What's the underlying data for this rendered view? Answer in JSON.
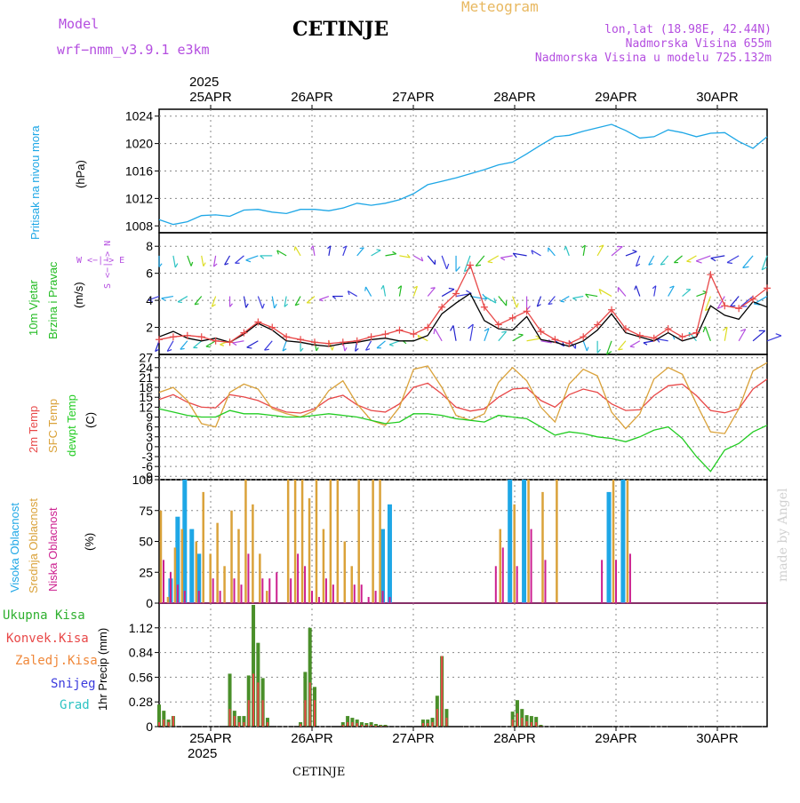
{
  "header": {
    "model_label": "Model",
    "model_name": "wrf−nmm_v3.9.1  e3km",
    "title": "CETINJE",
    "product": "Meteogram",
    "coords": "lon,lat (18.98E, 42.44N)",
    "elevation": "Nadmorska Visina 655m",
    "model_elevation": "Nadmorska Visina u modelu 725.132m",
    "footer_station": "CETINJE",
    "watermark": "made by Angel"
  },
  "colors": {
    "pressure": "#1ea7e6",
    "wind_labels": "#22bb22",
    "temp2m": "#e84848",
    "sfc": "#daa23a",
    "dew": "#22cc22",
    "cloud_high": "#1ea7e6",
    "cloud_mid": "#daa23a",
    "cloud_low": "#cc1f8f",
    "rain_total": "#2fb02f",
    "rain_conv": "#e84848",
    "rain_strat": "#f0883a",
    "snow": "#3b3bdd",
    "graupel": "#2dc3c3",
    "model": "#b44ee0",
    "product": "#e8b860"
  },
  "time_axis": {
    "year": "2025",
    "dates": [
      "25APR",
      "26APR",
      "27APR",
      "28APR",
      "29APR",
      "30APR"
    ],
    "start_hour": 0
  },
  "panels": {
    "pressure": {
      "label": "Pritisak na nivou mora",
      "unit": "(hPa)"
    },
    "wind": {
      "label1": "10m Vjetar",
      "label2": "Brzina i Pravac",
      "unit": "(m/s)",
      "compass_ns": "S <−|−> N",
      "compass_ew": "W <−|−> E"
    },
    "temp": {
      "label1": "2m Temp",
      "label2": "SFC Temp",
      "label3": "dewpt Temp",
      "unit": "(C)"
    },
    "cloud": {
      "label1": "Visoka Oblacnost",
      "label2": "Srednja Oblacnost",
      "label3": "Niska Oblacnost",
      "unit": "(%)"
    },
    "precip": {
      "legend": [
        "Ukupna Kisa",
        "Konvek.Kisa",
        "Zaledj.Kisa",
        "Snijeg",
        "Grad"
      ],
      "unit": "1hr Precip (mm)"
    }
  },
  "chart_data": [
    {
      "id": "pressure",
      "type": "line",
      "ylabel": "(hPa)",
      "ylim": [
        1007,
        1025
      ],
      "yticks": [
        1008,
        1012,
        1016,
        1020,
        1024
      ],
      "x_hours": [
        0,
        6,
        12,
        18,
        24,
        30,
        36,
        42,
        48,
        54,
        60,
        66,
        72,
        78,
        84,
        90,
        96,
        102,
        108,
        114,
        120,
        126,
        132,
        138,
        144,
        150,
        156,
        162,
        168,
        174,
        180,
        186,
        192,
        198,
        204,
        210,
        216,
        222,
        228,
        234,
        240,
        246,
        252,
        258
      ],
      "series": [
        {
          "name": "Pritisak na nivou mora",
          "values": [
            1008.9,
            1008.2,
            1008.6,
            1009.5,
            1009.6,
            1009.4,
            1010.3,
            1010.4,
            1010.0,
            1009.8,
            1010.4,
            1010.4,
            1010.2,
            1010.6,
            1011.3,
            1011.0,
            1011.3,
            1011.8,
            1012.7,
            1014.0,
            1014.5,
            1015.0,
            1015.6,
            1016.2,
            1016.9,
            1017.3,
            1018.5,
            1019.8,
            1021.0,
            1021.2,
            1021.8,
            1022.3,
            1022.8,
            1021.9,
            1020.8,
            1021.0,
            1022.0,
            1021.6,
            1021.0,
            1021.5,
            1021.6,
            1020.3,
            1019.3,
            1021.0
          ]
        }
      ]
    },
    {
      "id": "wind",
      "type": "line",
      "ylabel": "(m/s)",
      "ylim": [
        0,
        9
      ],
      "yticks": [
        2,
        4,
        6,
        8
      ],
      "x_hours": [
        0,
        6,
        12,
        18,
        24,
        30,
        36,
        42,
        48,
        54,
        60,
        66,
        72,
        78,
        84,
        90,
        96,
        102,
        108,
        114,
        120,
        126,
        132,
        138,
        144,
        150,
        156,
        162,
        168,
        174,
        180,
        186,
        192,
        198,
        204,
        210,
        216,
        222,
        228,
        234,
        240,
        246,
        252,
        258
      ],
      "series": [
        {
          "name": "gust",
          "values": [
            1.1,
            1.3,
            1.4,
            1.3,
            1.0,
            0.9,
            1.6,
            2.4,
            2.0,
            1.3,
            1.1,
            0.9,
            0.8,
            0.9,
            1.0,
            1.3,
            1.5,
            1.8,
            1.5,
            2.0,
            3.5,
            4.5,
            6.6,
            3.5,
            2.2,
            2.7,
            3.2,
            1.7,
            1.1,
            0.8,
            1.3,
            2.2,
            3.3,
            1.9,
            1.4,
            1.2,
            1.9,
            1.3,
            1.6,
            5.9,
            3.6,
            3.4,
            4.1,
            4.9
          ]
        },
        {
          "name": "speed",
          "values": [
            1.3,
            1.7,
            1.2,
            1.0,
            1.2,
            0.9,
            1.5,
            2.3,
            1.8,
            1.0,
            0.9,
            0.7,
            0.6,
            0.8,
            0.9,
            1.1,
            1.2,
            1.0,
            1.0,
            1.4,
            3.0,
            3.8,
            4.5,
            2.5,
            1.9,
            1.8,
            2.8,
            1.1,
            0.9,
            0.6,
            1.0,
            1.8,
            3.0,
            1.6,
            1.3,
            1.0,
            1.6,
            1.0,
            1.3,
            3.6,
            2.9,
            2.6,
            3.9,
            3.5
          ]
        }
      ],
      "arrow_rows": [
        1,
        4.3,
        7.3
      ],
      "arrow_dirs_deg": [
        200,
        210,
        220,
        230,
        240,
        250,
        260,
        240,
        220,
        200,
        180,
        170,
        160,
        170,
        190,
        210,
        230,
        250,
        270,
        300,
        330,
        350,
        10,
        20,
        40,
        60,
        80,
        100,
        120,
        140,
        160,
        180,
        200,
        220,
        240,
        260,
        280,
        300,
        320,
        340,
        10,
        30,
        50,
        70
      ]
    },
    {
      "id": "temperature",
      "type": "line",
      "ylabel": "(C)",
      "ylim": [
        -10,
        28
      ],
      "yticks": [
        -9,
        -6,
        -3,
        0,
        3,
        6,
        9,
        12,
        15,
        18,
        21,
        24,
        27
      ],
      "x_hours": [
        0,
        6,
        12,
        18,
        24,
        30,
        36,
        42,
        48,
        54,
        60,
        66,
        72,
        78,
        84,
        90,
        96,
        102,
        108,
        114,
        120,
        126,
        132,
        138,
        144,
        150,
        156,
        162,
        168,
        174,
        180,
        186,
        192,
        198,
        204,
        210,
        216,
        222,
        228,
        234,
        240,
        246,
        252,
        258
      ],
      "series": [
        {
          "name": "2m Temp",
          "values": [
            14.3,
            15.8,
            13.5,
            12.0,
            11.8,
            15.8,
            15.1,
            14.0,
            12.0,
            10.5,
            10.2,
            11.5,
            14.5,
            15.6,
            12.7,
            11.0,
            10.5,
            13.0,
            18.0,
            19.3,
            16.0,
            12.0,
            10.8,
            11.5,
            15.0,
            17.5,
            17.8,
            14.0,
            12.0,
            15.8,
            17.5,
            16.5,
            13.0,
            11.0,
            11.2,
            15.5,
            18.5,
            19.0,
            15.5,
            11.0,
            10.3,
            11.5,
            17.5,
            20.5
          ]
        },
        {
          "name": "SFC Temp",
          "values": [
            16.5,
            18.0,
            14.0,
            7.0,
            6.0,
            16.5,
            19.0,
            17.5,
            11.5,
            10.0,
            9.0,
            11.0,
            17.0,
            20.0,
            13.0,
            8.0,
            6.5,
            12.0,
            23.5,
            24.5,
            18.0,
            9.5,
            8.0,
            10.0,
            19.5,
            24.0,
            20.0,
            12.0,
            7.5,
            19.0,
            23.5,
            21.5,
            10.5,
            5.5,
            10.0,
            20.5,
            24.0,
            22.0,
            13.0,
            4.5,
            4.0,
            11.5,
            23.0,
            25.5
          ]
        },
        {
          "name": "dewpt Temp",
          "values": [
            11.5,
            10.5,
            9.5,
            9.0,
            9.0,
            11.0,
            10.0,
            10.0,
            9.5,
            9.0,
            9.0,
            9.5,
            10.0,
            9.5,
            9.0,
            8.0,
            7.0,
            7.5,
            10.0,
            10.0,
            9.5,
            8.5,
            8.0,
            7.5,
            9.5,
            9.0,
            8.5,
            6.0,
            3.5,
            4.5,
            4.0,
            3.0,
            2.5,
            1.5,
            3.0,
            5.0,
            6.0,
            2.5,
            -3.0,
            -7.5,
            -1.0,
            1.0,
            4.5,
            6.5
          ]
        }
      ]
    },
    {
      "id": "cloud",
      "type": "bar",
      "ylabel": "(%)",
      "ylim": [
        0,
        100
      ],
      "yticks": [
        0,
        25,
        50,
        75,
        100
      ],
      "x_hours": [
        0,
        3,
        6,
        9,
        12,
        15,
        18,
        21,
        24,
        27,
        30,
        33,
        36,
        39,
        42,
        45,
        48,
        51,
        54,
        57,
        60,
        63,
        66,
        69,
        72,
        75,
        78,
        81,
        84,
        87,
        90,
        93,
        96,
        99,
        102,
        105,
        108,
        111,
        114,
        117,
        120,
        123,
        126,
        129,
        132,
        135,
        138,
        141,
        144,
        150,
        156,
        162,
        168,
        174,
        180,
        186,
        192,
        198,
        204,
        210,
        216,
        222,
        228,
        234,
        240,
        246,
        252,
        258
      ],
      "series": [
        {
          "name": "Visoka Oblacnost",
          "values": [
            0,
            0,
            20,
            70,
            100,
            60,
            40,
            0,
            0,
            0,
            0,
            0,
            0,
            0,
            0,
            0,
            0,
            0,
            0,
            0,
            0,
            0,
            0,
            0,
            0,
            0,
            0,
            0,
            0,
            0,
            0,
            0,
            60,
            80,
            0,
            0,
            0,
            0,
            0,
            0,
            0,
            0,
            0,
            0,
            0,
            0,
            0,
            0,
            0,
            100,
            100,
            0,
            0,
            0,
            0,
            0,
            90,
            100,
            0,
            0,
            0,
            0,
            0,
            0,
            0,
            0,
            0,
            0
          ]
        },
        {
          "name": "Srednja Oblacnost",
          "values": [
            75,
            5,
            45,
            60,
            0,
            50,
            90,
            40,
            65,
            30,
            75,
            60,
            100,
            80,
            40,
            10,
            0,
            0,
            100,
            100,
            100,
            85,
            100,
            60,
            100,
            100,
            50,
            30,
            100,
            0,
            100,
            100,
            0,
            0,
            0,
            0,
            0,
            0,
            0,
            0,
            0,
            0,
            0,
            0,
            0,
            0,
            0,
            0,
            60,
            80,
            100,
            90,
            100,
            0,
            0,
            0,
            100,
            100,
            0,
            0,
            0,
            0,
            0,
            0,
            0,
            0,
            0,
            0
          ]
        },
        {
          "name": "Niska Oblacnost",
          "values": [
            35,
            25,
            15,
            10,
            0,
            10,
            0,
            20,
            10,
            0,
            20,
            15,
            40,
            0,
            20,
            20,
            25,
            0,
            20,
            40,
            30,
            10,
            5,
            20,
            15,
            0,
            0,
            15,
            15,
            5,
            10,
            10,
            5,
            0,
            0,
            0,
            0,
            0,
            0,
            0,
            0,
            0,
            0,
            0,
            0,
            0,
            0,
            30,
            45,
            30,
            60,
            35,
            0,
            0,
            0,
            35,
            35,
            40,
            0,
            0,
            0,
            0,
            0,
            0,
            0,
            0,
            0,
            0
          ]
        }
      ]
    },
    {
      "id": "precip",
      "type": "bar",
      "ylabel": "1hr Precip (mm)",
      "ylim": [
        0,
        1.4
      ],
      "yticks": [
        0,
        0.28,
        0.56,
        0.84,
        1.12
      ],
      "x_hours": [
        0,
        2,
        4,
        6,
        8,
        30,
        32,
        34,
        36,
        38,
        40,
        42,
        44,
        46,
        60,
        62,
        64,
        66,
        68,
        78,
        80,
        82,
        84,
        86,
        88,
        90,
        92,
        94,
        96,
        112,
        114,
        116,
        118,
        120,
        122,
        150,
        152,
        154,
        156,
        158,
        160,
        162
      ],
      "series": [
        {
          "name": "Ukupna Kisa",
          "values": [
            0.25,
            0.18,
            0.08,
            0.12,
            0,
            0.6,
            0.18,
            0.12,
            0.12,
            0.58,
            1.38,
            0.95,
            0.55,
            0.1,
            0.05,
            0.62,
            1.12,
            0.45,
            0,
            0.05,
            0.12,
            0.1,
            0.08,
            0.05,
            0.04,
            0.05,
            0.03,
            0.02,
            0.02,
            0.08,
            0.08,
            0.1,
            0.35,
            0.8,
            0.2,
            0.17,
            0.3,
            0.2,
            0.13,
            0.12,
            0.11,
            0.02
          ]
        },
        {
          "name": "Konvek.Kisa",
          "values": [
            0.05,
            0.08,
            0.05,
            0.12,
            0,
            0.2,
            0.12,
            0.05,
            0.05,
            0.3,
            0.6,
            0.5,
            0.3,
            0.05,
            0.03,
            0.3,
            0.5,
            0.3,
            0,
            0.02,
            0.05,
            0.05,
            0.04,
            0.02,
            0.02,
            0.02,
            0.01,
            0.01,
            0.01,
            0.04,
            0.04,
            0.05,
            0.2,
            0.8,
            0.1,
            0.08,
            0.15,
            0.1,
            0.06,
            0.05,
            0.05,
            0.01
          ]
        }
      ]
    }
  ]
}
